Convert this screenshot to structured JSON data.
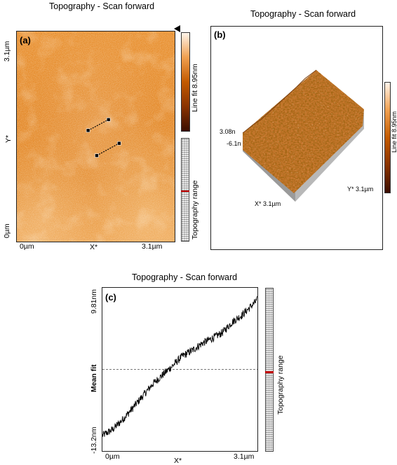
{
  "chart_data": [
    {
      "type": "heatmap",
      "panel": "(a)",
      "title": "Topography - Scan forward",
      "xlabel": "X*",
      "ylabel": "Y*",
      "x_ticks": [
        "0µm",
        "3.1µm"
      ],
      "y_ticks": [
        "0µm",
        "3.1µm"
      ],
      "xlim": [
        0,
        3.1
      ],
      "ylim": [
        0,
        3.1
      ],
      "colorbar_label": "Line fit 8.95nm",
      "colorbar_colors": [
        "#3a0e00",
        "#c35a00",
        "#f0a050",
        "#ffffff"
      ],
      "range_label": "Topography range",
      "markers": [
        {
          "x1": 1.4,
          "y1": 1.64,
          "x2": 1.8,
          "y2": 1.8
        },
        {
          "x1": 1.57,
          "y1": 1.27,
          "x2": 2.01,
          "y2": 1.45
        }
      ]
    },
    {
      "type": "surface3d",
      "panel": "(b)",
      "title": "Topography - Scan forward",
      "x_axis_label": "X* 3.1µm",
      "y_axis_label": "Y* 3.1µm",
      "z_ticks": [
        "3.08n",
        "-6.1n"
      ],
      "colorbar_label": "Line fit 8.95nm"
    },
    {
      "type": "line",
      "panel": "(c)",
      "title": "Topography - Scan forward",
      "xlabel": "X*",
      "ylabel": "Mean fit",
      "x_ticks": [
        "0µm",
        "3.1µm"
      ],
      "y_ticks": [
        "-13.2nm",
        "9.81nm"
      ],
      "xlim": [
        0,
        3.1
      ],
      "ylim": [
        -13.2,
        9.81
      ],
      "mean_line": -1.7,
      "range_label": "Topography range",
      "series": [
        {
          "x": [
            0,
            0.2,
            0.4,
            0.6,
            0.8,
            1.0,
            1.2,
            1.4,
            1.6,
            1.8,
            2.0,
            2.2,
            2.4,
            2.6,
            2.8,
            3.0,
            3.1
          ],
          "values": [
            -11.0,
            -10.2,
            -8.8,
            -7.2,
            -5.5,
            -3.8,
            -2.5,
            -1.2,
            0.2,
            1.0,
            2.0,
            2.7,
            3.5,
            5.0,
            6.0,
            7.4,
            8.1
          ]
        }
      ]
    }
  ]
}
